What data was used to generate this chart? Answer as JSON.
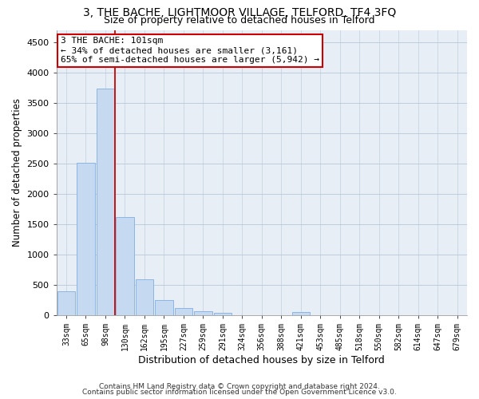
{
  "title1": "3, THE BACHE, LIGHTMOOR VILLAGE, TELFORD, TF4 3FQ",
  "title2": "Size of property relative to detached houses in Telford",
  "xlabel": "Distribution of detached houses by size in Telford",
  "ylabel": "Number of detached properties",
  "bar_labels": [
    "33sqm",
    "65sqm",
    "98sqm",
    "130sqm",
    "162sqm",
    "195sqm",
    "227sqm",
    "259sqm",
    "291sqm",
    "324sqm",
    "356sqm",
    "388sqm",
    "421sqm",
    "453sqm",
    "485sqm",
    "518sqm",
    "550sqm",
    "582sqm",
    "614sqm",
    "647sqm",
    "679sqm"
  ],
  "bar_values": [
    390,
    2510,
    3730,
    1620,
    590,
    245,
    110,
    55,
    40,
    0,
    0,
    0,
    50,
    0,
    0,
    0,
    0,
    0,
    0,
    0,
    0
  ],
  "bar_color": "#c5d9f1",
  "bar_edge_color": "#8db4e2",
  "ylim": [
    0,
    4700
  ],
  "yticks": [
    0,
    500,
    1000,
    1500,
    2000,
    2500,
    3000,
    3500,
    4000,
    4500
  ],
  "red_line_bin": 2,
  "annotation_text": "3 THE BACHE: 101sqm\n← 34% of detached houses are smaller (3,161)\n65% of semi-detached houses are larger (5,942) →",
  "annotation_box_color": "#ffffff",
  "annotation_box_edge": "#cc0000",
  "footer1": "Contains HM Land Registry data © Crown copyright and database right 2024.",
  "footer2": "Contains public sector information licensed under the Open Government Licence v3.0.",
  "background_color": "#ffffff",
  "axes_bg_color": "#e8eef6",
  "grid_color": "#b8c8d8",
  "title1_fontsize": 10,
  "title2_fontsize": 9,
  "xlabel_fontsize": 9,
  "ylabel_fontsize": 8.5,
  "footer_fontsize": 6.5
}
